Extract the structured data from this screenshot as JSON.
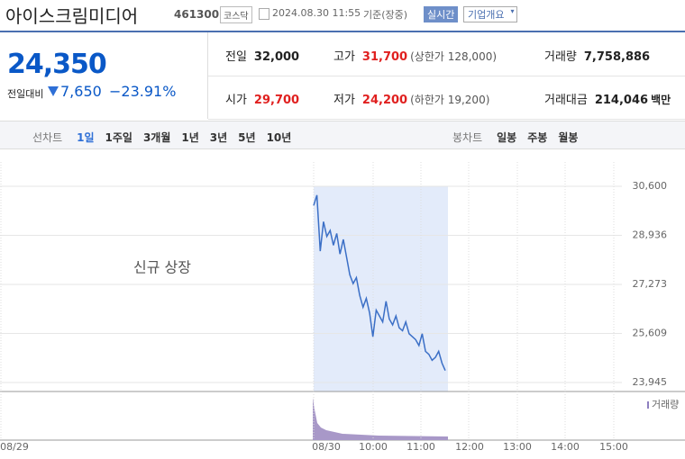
{
  "header": {
    "title": "아이스크림미디어",
    "code": "461300",
    "market": "코스닥",
    "datetime": "2024.08.30 11:55",
    "basis": "기준(장중)",
    "realtime": "실시간",
    "company": "기업개요"
  },
  "price": {
    "current": "24,350",
    "change_label": "전일대비",
    "change": "7,650",
    "change_rate": "−23.91%"
  },
  "stats": [
    [
      {
        "label": "전일",
        "value": "32,000",
        "color": "#222222"
      },
      {
        "label": "고가",
        "value": "31,700",
        "color": "#e0201f",
        "note": "(상한가 128,000)"
      },
      {
        "label": "거래량",
        "value": "7,758,886",
        "color": "#222222"
      }
    ],
    [
      {
        "label": "시가",
        "value": "29,700",
        "color": "#e0201f"
      },
      {
        "label": "저가",
        "value": "24,200",
        "color": "#e0201f",
        "note": "(하한가 19,200)"
      },
      {
        "label": "거래대금",
        "value": "214,046",
        "color": "#222222",
        "unit": "백만"
      }
    ]
  ],
  "tabs": {
    "line_label": "선차트",
    "line": [
      "1일",
      "1주일",
      "3개월",
      "1년",
      "3년",
      "5년",
      "10년"
    ],
    "candle_label": "봉차트",
    "candle": [
      "일봉",
      "주봉",
      "월봉"
    ]
  },
  "chart_data": {
    "type": "line",
    "annotation": "신규 상장",
    "volume_label": "거래량",
    "color": "#3b6fc6",
    "x_labels": [
      "08/29",
      "08/30",
      "10:00",
      "11:00",
      "12:00",
      "13:00",
      "14:00",
      "15:00"
    ],
    "values": [
      29950,
      30300,
      28400,
      29400,
      28900,
      29100,
      28600,
      29000,
      28300,
      28800,
      28200,
      27600,
      27300,
      27500,
      26900,
      26500,
      26800,
      26300,
      25500,
      26400,
      26200,
      26000,
      26700,
      26100,
      25900,
      26200,
      25800,
      25700,
      26000,
      25600,
      25500,
      25400,
      25200,
      25600,
      25000,
      24900,
      24700,
      24800,
      25000,
      24600,
      24350
    ],
    "ylim": [
      23945,
      30600
    ],
    "yticks": [
      {
        "value": 30600,
        "label": "30,600"
      },
      {
        "value": 28936,
        "label": "28,936"
      },
      {
        "value": 27273,
        "label": "27,273"
      },
      {
        "value": 25609,
        "label": "25,609"
      },
      {
        "value": 23945,
        "label": "23,945"
      }
    ],
    "grid": true
  }
}
